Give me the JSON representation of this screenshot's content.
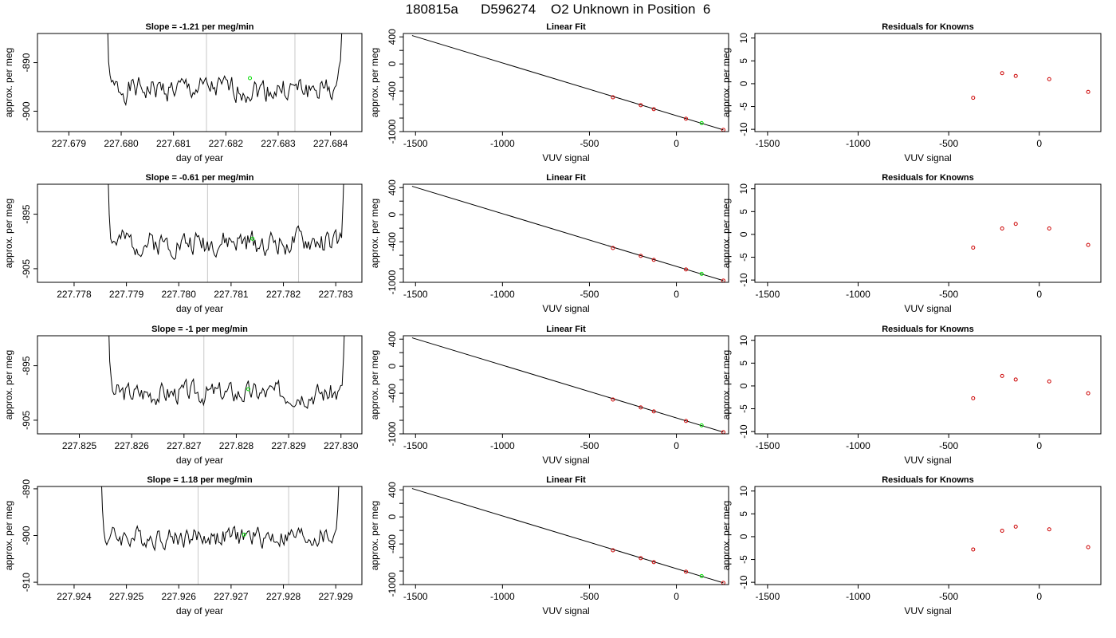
{
  "figure": {
    "title": "180815a      D596274    O2 Unknown in Position  6"
  },
  "colors": {
    "trace": "#000000",
    "marker": "#00dd00",
    "known": "#cc0000",
    "vline": "#c8c8c8"
  },
  "rows": [
    {
      "timeseries": {
        "title": "Slope =  -1.21  per meg/min",
        "xlabel": "day of year",
        "ylabel": "approx. per meg",
        "xlim": [
          227.6784,
          227.6846
        ],
        "ylim": [
          -904.2,
          -884.0
        ],
        "xticks": [
          "227.679",
          "227.680",
          "227.681",
          "227.682",
          "227.683",
          "227.684"
        ],
        "xtick_values": [
          227.679,
          227.68,
          227.681,
          227.682,
          227.683,
          227.684
        ],
        "yticks": [
          "-890",
          "-900"
        ],
        "ytick_values": [
          -890,
          -900
        ],
        "vlines": [
          227.68163,
          227.68332
        ],
        "base": -895.5,
        "amp": 2.2,
        "seed": 1,
        "t_start": 227.67965,
        "t_end": 227.6843,
        "marker": [
          227.68246,
          -893.2
        ]
      },
      "fit": {
        "title": "Linear Fit",
        "xlabel": "VUV signal",
        "ylabel": "approx. per meg",
        "xlim": [
          -1570,
          300
        ],
        "ylim": [
          -1000,
          450
        ],
        "xticks": [
          "-1500",
          "-1000",
          "-500",
          "0"
        ],
        "xtick_values": [
          -1500,
          -1000,
          -500,
          0
        ],
        "yticks": [
          "400",
          "0",
          "-400",
          "-1000"
        ],
        "ytick_values": [
          400,
          0,
          -400,
          -1000
        ],
        "line": [
          [
            -1520,
            420
          ],
          [
            270,
            -975
          ]
        ],
        "knowns": [
          [
            -365,
            -493
          ],
          [
            -205,
            -610
          ],
          [
            -130,
            -668
          ],
          [
            55,
            -810
          ],
          [
            270,
            -975
          ]
        ],
        "unknown": [
          145,
          -875
        ]
      },
      "residuals": {
        "title": "Residuals for Knowns",
        "xlabel": "VUV signal",
        "ylabel": "approx. per meg",
        "xlim": [
          -1570,
          340
        ],
        "ylim": [
          -10.5,
          11
        ],
        "xticks": [
          "-1500",
          "-1000",
          "-500",
          "0"
        ],
        "xtick_values": [
          -1500,
          -1000,
          -500,
          0
        ],
        "yticks": [
          "10",
          "5",
          "0",
          "-5",
          "-10"
        ],
        "ytick_values": [
          10,
          5,
          0,
          -5,
          -10
        ],
        "points": [
          [
            -365,
            -3.1
          ],
          [
            -205,
            2.3
          ],
          [
            -130,
            1.7
          ],
          [
            55,
            1.0
          ],
          [
            270,
            -1.8
          ]
        ]
      }
    },
    {
      "timeseries": {
        "title": "Slope =  -0.61  per meg/min",
        "xlabel": "day of year",
        "ylabel": "approx. per meg",
        "xlim": [
          227.7773,
          227.7835
        ],
        "ylim": [
          -907.5,
          -889.5
        ],
        "xticks": [
          "227.778",
          "227.779",
          "227.780",
          "227.781",
          "227.782",
          "227.783"
        ],
        "xtick_values": [
          227.778,
          227.779,
          227.78,
          227.781,
          227.782,
          227.783
        ],
        "yticks": [
          "-895",
          "-905"
        ],
        "ytick_values": [
          -895,
          -905
        ],
        "vlines": [
          227.78055,
          227.78229
        ],
        "base": -900.2,
        "amp": 2.0,
        "seed": 2,
        "t_start": 227.77856,
        "t_end": 227.78325,
        "marker": [
          227.78141,
          -899.5
        ]
      },
      "fit": {
        "title": "Linear Fit",
        "xlabel": "VUV signal",
        "ylabel": "approx. per meg",
        "xlim": [
          -1570,
          300
        ],
        "ylim": [
          -1000,
          450
        ],
        "xticks": [
          "-1500",
          "-1000",
          "-500",
          "0"
        ],
        "xtick_values": [
          -1500,
          -1000,
          -500,
          0
        ],
        "yticks": [
          "400",
          "0",
          "-400",
          "-1000"
        ],
        "ytick_values": [
          400,
          0,
          -400,
          -1000
        ],
        "line": [
          [
            -1520,
            420
          ],
          [
            270,
            -975
          ]
        ],
        "knowns": [
          [
            -365,
            -493
          ],
          [
            -205,
            -610
          ],
          [
            -130,
            -668
          ],
          [
            55,
            -810
          ],
          [
            270,
            -975
          ]
        ],
        "unknown": [
          145,
          -875
        ]
      },
      "residuals": {
        "title": "Residuals for Knowns",
        "xlabel": "VUV signal",
        "ylabel": "approx. per meg",
        "xlim": [
          -1570,
          340
        ],
        "ylim": [
          -10.5,
          11
        ],
        "xticks": [
          "-1500",
          "-1000",
          "-500",
          "0"
        ],
        "xtick_values": [
          -1500,
          -1000,
          -500,
          0
        ],
        "yticks": [
          "10",
          "5",
          "0",
          "-5",
          "-10"
        ],
        "ytick_values": [
          10,
          5,
          0,
          -5,
          -10
        ],
        "points": [
          [
            -365,
            -2.9
          ],
          [
            -205,
            1.3
          ],
          [
            -130,
            2.3
          ],
          [
            55,
            1.3
          ],
          [
            270,
            -2.3
          ]
        ]
      }
    },
    {
      "timeseries": {
        "title": "Slope =  -1  per meg/min",
        "xlabel": "day of year",
        "ylabel": "approx. per meg",
        "xlim": [
          227.8242,
          227.8304
        ],
        "ylim": [
          -907.5,
          -889.5
        ],
        "xticks": [
          "227.825",
          "227.826",
          "227.827",
          "227.828",
          "227.829",
          "227.830"
        ],
        "xtick_values": [
          227.825,
          227.826,
          227.827,
          227.828,
          227.829,
          227.83
        ],
        "yticks": [
          "-895",
          "-905"
        ],
        "ytick_values": [
          -895,
          -905
        ],
        "vlines": [
          227.82738,
          227.82909
        ],
        "base": -900.0,
        "amp": 1.8,
        "seed": 3,
        "t_start": 227.82547,
        "t_end": 227.83016,
        "marker": [
          227.82823,
          -899.3
        ]
      },
      "fit": {
        "title": "Linear Fit",
        "xlabel": "VUV signal",
        "ylabel": "approx. per meg",
        "xlim": [
          -1570,
          300
        ],
        "ylim": [
          -1000,
          450
        ],
        "xticks": [
          "-1500",
          "-1000",
          "-500",
          "0"
        ],
        "xtick_values": [
          -1500,
          -1000,
          -500,
          0
        ],
        "yticks": [
          "400",
          "0",
          "-400",
          "-1000"
        ],
        "ytick_values": [
          400,
          0,
          -400,
          -1000
        ],
        "line": [
          [
            -1520,
            420
          ],
          [
            270,
            -975
          ]
        ],
        "knowns": [
          [
            -365,
            -493
          ],
          [
            -205,
            -610
          ],
          [
            -130,
            -668
          ],
          [
            55,
            -810
          ],
          [
            270,
            -975
          ]
        ],
        "unknown": [
          145,
          -875
        ]
      },
      "residuals": {
        "title": "Residuals for Knowns",
        "xlabel": "VUV signal",
        "ylabel": "approx. per meg",
        "xlim": [
          -1570,
          340
        ],
        "ylim": [
          -10.5,
          11
        ],
        "xticks": [
          "-1500",
          "-1000",
          "-500",
          "0"
        ],
        "xtick_values": [
          -1500,
          -1000,
          -500,
          0
        ],
        "yticks": [
          "10",
          "5",
          "0",
          "-5",
          "-10"
        ],
        "points": [
          [
            -365,
            -2.7
          ],
          [
            -205,
            2.2
          ],
          [
            -130,
            1.4
          ],
          [
            55,
            1.0
          ],
          [
            270,
            -1.6
          ]
        ],
        "ytick_values": [
          10,
          5,
          0,
          -5,
          -10
        ]
      }
    },
    {
      "timeseries": {
        "title": "Slope =  1.18  per meg/min",
        "xlabel": "day of year",
        "ylabel": "approx. per meg",
        "xlim": [
          227.9233,
          227.9295
        ],
        "ylim": [
          -910.5,
          -889.5
        ],
        "xticks": [
          "227.924",
          "227.925",
          "227.926",
          "227.927",
          "227.928",
          "227.929"
        ],
        "xtick_values": [
          227.924,
          227.925,
          227.926,
          227.927,
          227.928,
          227.929
        ],
        "yticks": [
          "-890",
          "-900",
          "-910"
        ],
        "ytick_values": [
          -890,
          -900,
          -910
        ],
        "vlines": [
          227.92637,
          227.9281
        ],
        "base": -900.3,
        "amp": 2.0,
        "seed": 4,
        "t_start": 227.92443,
        "t_end": 227.92915,
        "marker": [
          227.92725,
          -899.8
        ]
      },
      "fit": {
        "title": "Linear Fit",
        "xlabel": "VUV signal",
        "ylabel": "approx. per meg",
        "xlim": [
          -1570,
          300
        ],
        "ylim": [
          -1000,
          450
        ],
        "xticks": [
          "-1500",
          "-1000",
          "-500",
          "0"
        ],
        "xtick_values": [
          -1500,
          -1000,
          -500,
          0
        ],
        "yticks": [
          "400",
          "0",
          "-400",
          "-1000"
        ],
        "ytick_values": [
          400,
          0,
          -400,
          -1000
        ],
        "line": [
          [
            -1520,
            420
          ],
          [
            270,
            -975
          ]
        ],
        "knowns": [
          [
            -365,
            -493
          ],
          [
            -205,
            -610
          ],
          [
            -130,
            -668
          ],
          [
            55,
            -810
          ],
          [
            270,
            -975
          ]
        ],
        "unknown": [
          145,
          -875
        ]
      },
      "residuals": {
        "title": "Residuals for Knowns",
        "xlabel": "VUV signal",
        "ylabel": "approx. per meg",
        "xlim": [
          -1570,
          340
        ],
        "ylim": [
          -10.5,
          11
        ],
        "xticks": [
          "-1500",
          "-1000",
          "-500",
          "0"
        ],
        "xtick_values": [
          -1500,
          -1000,
          -500,
          0
        ],
        "yticks": [
          "10",
          "5",
          "0",
          "-5",
          "-10"
        ],
        "ytick_values": [
          10,
          5,
          0,
          -5,
          -10
        ],
        "points": [
          [
            -365,
            -2.8
          ],
          [
            -205,
            1.3
          ],
          [
            -130,
            2.2
          ],
          [
            55,
            1.6
          ],
          [
            270,
            -2.3
          ]
        ]
      }
    }
  ],
  "chart_data": [
    {
      "type": "line",
      "title": "Slope =  -1.21  per meg/min",
      "xlabel": "day of year",
      "ylabel": "approx. per meg",
      "xlim": [
        227.6784,
        227.6846
      ],
      "ylim": [
        -904.2,
        -884.0
      ]
    },
    {
      "type": "scatter",
      "title": "Linear Fit",
      "xlabel": "VUV signal",
      "ylabel": "approx. per meg",
      "series": [
        {
          "x": [
            -365,
            -205,
            -130,
            55,
            270
          ],
          "y": [
            -493,
            -610,
            -668,
            -810,
            -975
          ]
        },
        {
          "x": [
            145
          ],
          "y": [
            -875
          ]
        }
      ]
    },
    {
      "type": "scatter",
      "title": "Residuals for Knowns",
      "xlabel": "VUV signal",
      "ylabel": "approx. per meg",
      "x": [
        -365,
        -205,
        -130,
        55,
        270
      ],
      "y": [
        -3.1,
        2.3,
        1.7,
        1.0,
        -1.8
      ]
    },
    {
      "type": "line",
      "title": "Slope =  -0.61  per meg/min",
      "xlabel": "day of year",
      "ylabel": "approx. per meg",
      "xlim": [
        227.7773,
        227.7835
      ],
      "ylim": [
        -907.5,
        -889.5
      ]
    },
    {
      "type": "scatter",
      "title": "Residuals for Knowns",
      "x": [
        -365,
        -205,
        -130,
        55,
        270
      ],
      "y": [
        -2.9,
        1.3,
        2.3,
        1.3,
        -2.3
      ]
    },
    {
      "type": "line",
      "title": "Slope =  -1  per meg/min",
      "xlabel": "day of year",
      "ylabel": "approx. per meg",
      "xlim": [
        227.8242,
        227.8304
      ],
      "ylim": [
        -907.5,
        -889.5
      ]
    },
    {
      "type": "scatter",
      "title": "Residuals for Knowns",
      "x": [
        -365,
        -205,
        -130,
        55,
        270
      ],
      "y": [
        -2.7,
        2.2,
        1.4,
        1.0,
        -1.6
      ]
    },
    {
      "type": "line",
      "title": "Slope =  1.18  per meg/min",
      "xlabel": "day of year",
      "ylabel": "approx. per meg",
      "xlim": [
        227.9233,
        227.9295
      ],
      "ylim": [
        -910.5,
        -889.5
      ]
    },
    {
      "type": "scatter",
      "title": "Residuals for Knowns",
      "x": [
        -365,
        -205,
        -130,
        55,
        270
      ],
      "y": [
        -2.8,
        1.3,
        2.2,
        1.6,
        -2.3
      ]
    }
  ]
}
